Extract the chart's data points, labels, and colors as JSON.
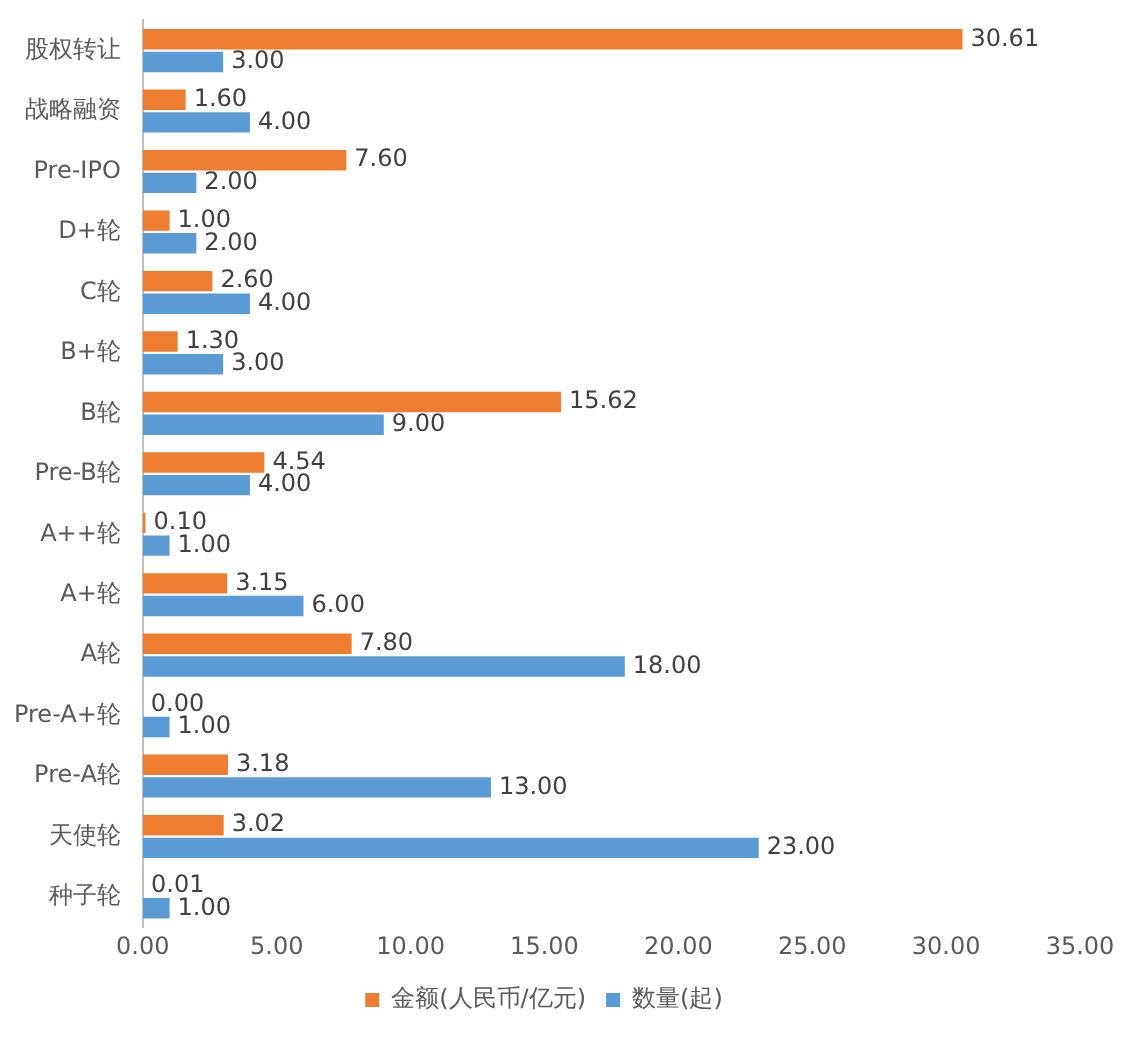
{
  "chart_data": {
    "type": "bar",
    "orientation": "horizontal",
    "categories": [
      "股权转让",
      "战略融资",
      "Pre-IPO",
      "D+轮",
      "C轮",
      "B+轮",
      "B轮",
      "Pre-B轮",
      "A++轮",
      "A+轮",
      "A轮",
      "Pre-A+轮",
      "Pre-A轮",
      "天使轮",
      "种子轮"
    ],
    "series": [
      {
        "name": "金额(人民币/亿元)",
        "color": "#ed7d31",
        "values": [
          30.61,
          1.6,
          7.6,
          1.0,
          2.6,
          1.3,
          15.62,
          4.54,
          0.1,
          3.15,
          7.8,
          0.0,
          3.18,
          3.02,
          0.01
        ],
        "value_labels": [
          "30.61",
          "1.60",
          "7.60",
          "1.00",
          "2.60",
          "1.30",
          "15.62",
          "4.54",
          "0.10",
          "3.15",
          "7.80",
          "0.00",
          "3.18",
          "3.02",
          "0.01"
        ]
      },
      {
        "name": "数量(起)",
        "color": "#5b9bd5",
        "values": [
          3,
          4,
          2,
          2,
          4,
          3,
          9,
          4,
          1,
          6,
          18,
          1,
          13,
          23,
          1
        ],
        "value_labels": [
          "3.00",
          "4.00",
          "2.00",
          "2.00",
          "4.00",
          "3.00",
          "9.00",
          "4.00",
          "1.00",
          "6.00",
          "18.00",
          "1.00",
          "13.00",
          "23.00",
          "1.00"
        ]
      }
    ],
    "xlim": [
      0,
      35
    ],
    "xticks": [
      {
        "value": 0,
        "label": "0.00"
      },
      {
        "value": 5,
        "label": "5.00"
      },
      {
        "value": 10,
        "label": "10.00"
      },
      {
        "value": 15,
        "label": "15.00"
      },
      {
        "value": 20,
        "label": "20.00"
      },
      {
        "value": 25,
        "label": "25.00"
      },
      {
        "value": 30,
        "label": "30.00"
      },
      {
        "value": 35,
        "label": "35.00"
      }
    ],
    "grid": false,
    "legend": "bottom"
  }
}
